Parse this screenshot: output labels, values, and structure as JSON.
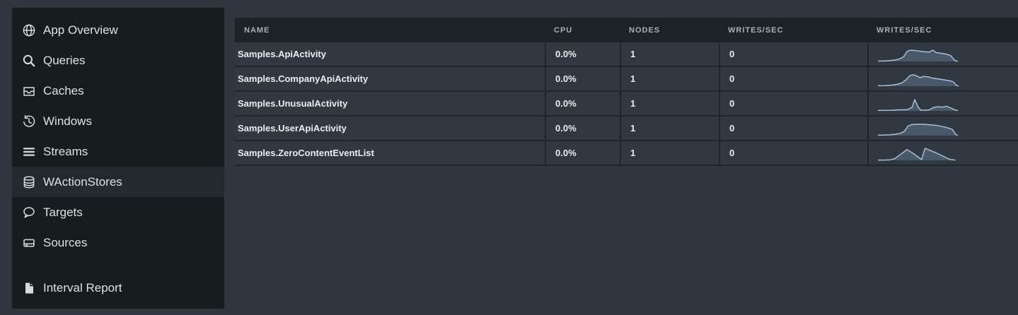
{
  "colors": {
    "page_bg": "#2f363d",
    "sidebar_bg": "#171c1f",
    "sidebar_active_bg": "#23292e",
    "sidebar_text": "#dce1e6",
    "header_bg": "#1d2226",
    "header_text": "#a7b0b8",
    "row_bg": "#313840",
    "row_border": "#1f252a",
    "cell_text": "#e9edf0",
    "spark_stroke": "#a4bedb",
    "spark_fill": "rgba(129,160,197,0.32)"
  },
  "sidebar": {
    "items": [
      {
        "label": "App Overview",
        "icon": "globe-icon",
        "active": false
      },
      {
        "label": "Queries",
        "icon": "search-icon",
        "active": false
      },
      {
        "label": "Caches",
        "icon": "inbox-icon",
        "active": false
      },
      {
        "label": "Windows",
        "icon": "history-icon",
        "active": false
      },
      {
        "label": "Streams",
        "icon": "streams-lines-icon",
        "active": false
      },
      {
        "label": "WActionStores",
        "icon": "database-icon",
        "active": true
      },
      {
        "label": "Targets",
        "icon": "speech-bubble-icon",
        "active": false
      },
      {
        "label": "Sources",
        "icon": "drive-icon",
        "active": false
      },
      {
        "label": "Interval Report",
        "icon": "document-icon",
        "active": false,
        "separated": true
      }
    ]
  },
  "table": {
    "columns": [
      "NAME",
      "CPU",
      "NODES",
      "WRITES/SEC",
      "WRITES/SEC"
    ],
    "rows": [
      {
        "name": "Samples.ApiActivity",
        "cpu": "0.0%",
        "nodes": "1",
        "writes_per_sec": "0",
        "sparkline": [
          [
            0,
            0.03
          ],
          [
            0.06,
            0.03
          ],
          [
            0.12,
            0.05
          ],
          [
            0.18,
            0.09
          ],
          [
            0.24,
            0.16
          ],
          [
            0.3,
            0.34
          ],
          [
            0.34,
            0.74
          ],
          [
            0.38,
            0.84
          ],
          [
            0.44,
            0.81
          ],
          [
            0.5,
            0.76
          ],
          [
            0.56,
            0.71
          ],
          [
            0.6,
            0.7
          ],
          [
            0.64,
            0.84
          ],
          [
            0.68,
            0.66
          ],
          [
            0.73,
            0.62
          ],
          [
            0.79,
            0.56
          ],
          [
            0.85,
            0.44
          ],
          [
            0.9,
            0.06
          ],
          [
            0.93,
            0.02
          ]
        ]
      },
      {
        "name": "Samples.CompanyApiActivity",
        "cpu": "0.0%",
        "nodes": "1",
        "writes_per_sec": "0",
        "sparkline": [
          [
            0,
            0.03
          ],
          [
            0.08,
            0.04
          ],
          [
            0.15,
            0.07
          ],
          [
            0.22,
            0.13
          ],
          [
            0.28,
            0.24
          ],
          [
            0.33,
            0.48
          ],
          [
            0.37,
            0.78
          ],
          [
            0.41,
            0.85
          ],
          [
            0.45,
            0.78
          ],
          [
            0.49,
            0.63
          ],
          [
            0.53,
            0.72
          ],
          [
            0.58,
            0.7
          ],
          [
            0.64,
            0.6
          ],
          [
            0.71,
            0.53
          ],
          [
            0.78,
            0.47
          ],
          [
            0.84,
            0.4
          ],
          [
            0.88,
            0.33
          ],
          [
            0.92,
            0.05
          ],
          [
            0.94,
            0.02
          ]
        ]
      },
      {
        "name": "Samples.UnusualActivity",
        "cpu": "0.0%",
        "nodes": "1",
        "writes_per_sec": "0",
        "sparkline": [
          [
            0,
            0.03
          ],
          [
            0.08,
            0.04
          ],
          [
            0.16,
            0.05
          ],
          [
            0.24,
            0.08
          ],
          [
            0.3,
            0.08
          ],
          [
            0.35,
            0.1
          ],
          [
            0.4,
            0.28
          ],
          [
            0.43,
            0.85
          ],
          [
            0.47,
            0.28
          ],
          [
            0.5,
            0.06
          ],
          [
            0.55,
            0.05
          ],
          [
            0.6,
            0.08
          ],
          [
            0.65,
            0.26
          ],
          [
            0.7,
            0.31
          ],
          [
            0.75,
            0.28
          ],
          [
            0.8,
            0.34
          ],
          [
            0.85,
            0.22
          ],
          [
            0.9,
            0.07
          ],
          [
            0.93,
            0.03
          ]
        ]
      },
      {
        "name": "Samples.UserApiActivity",
        "cpu": "0.0%",
        "nodes": "1",
        "writes_per_sec": "0",
        "sparkline": [
          [
            0,
            0.03
          ],
          [
            0.07,
            0.04
          ],
          [
            0.14,
            0.06
          ],
          [
            0.2,
            0.1
          ],
          [
            0.26,
            0.17
          ],
          [
            0.31,
            0.32
          ],
          [
            0.35,
            0.7
          ],
          [
            0.4,
            0.83
          ],
          [
            0.46,
            0.85
          ],
          [
            0.52,
            0.84
          ],
          [
            0.58,
            0.82
          ],
          [
            0.64,
            0.79
          ],
          [
            0.7,
            0.75
          ],
          [
            0.76,
            0.67
          ],
          [
            0.82,
            0.57
          ],
          [
            0.87,
            0.46
          ],
          [
            0.91,
            0.07
          ],
          [
            0.93,
            0.02
          ]
        ]
      },
      {
        "name": "Samples.ZeroContentEventList",
        "cpu": "0.0%",
        "nodes": "1",
        "writes_per_sec": "0",
        "sparkline": [
          [
            0,
            0.02
          ],
          [
            0.08,
            0.02
          ],
          [
            0.15,
            0.04
          ],
          [
            0.2,
            0.14
          ],
          [
            0.34,
            0.8
          ],
          [
            0.42,
            0.48
          ],
          [
            0.51,
            0.06
          ],
          [
            0.55,
            0.9
          ],
          [
            0.68,
            0.55
          ],
          [
            0.84,
            0.07
          ],
          [
            0.9,
            0.02
          ]
        ]
      }
    ]
  }
}
